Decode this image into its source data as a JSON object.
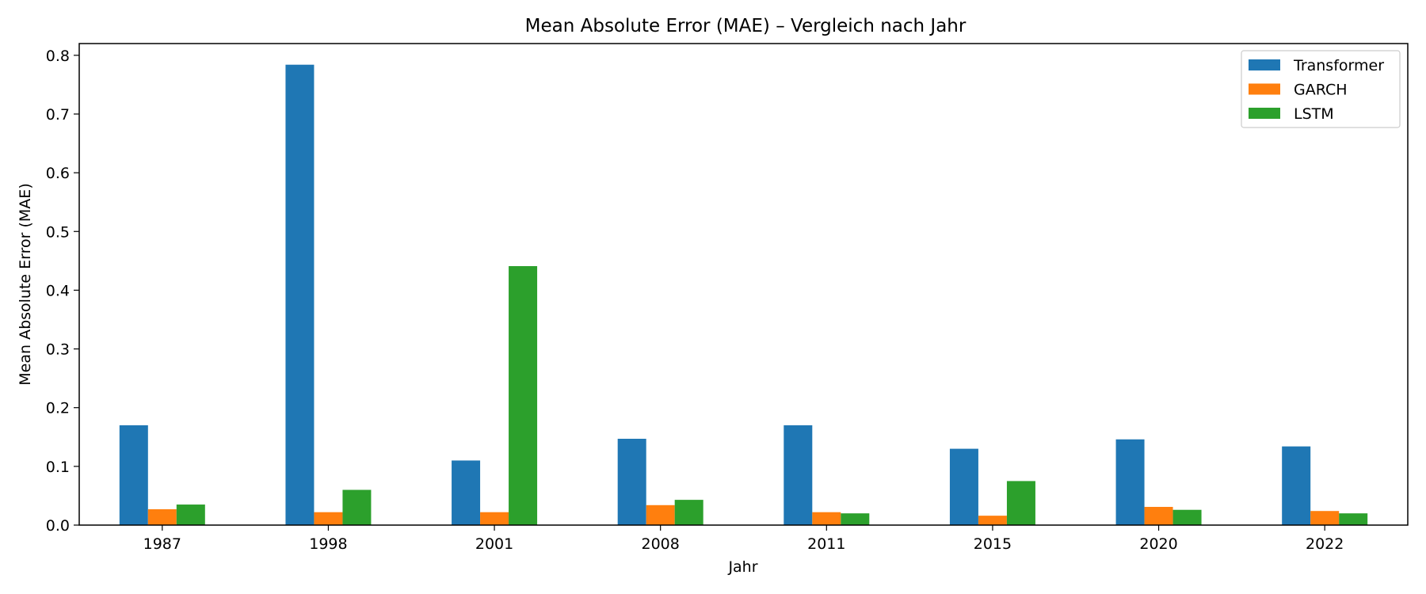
{
  "chart_data": {
    "type": "bar",
    "title": "Mean Absolute Error (MAE) – Vergleich nach Jahr",
    "xlabel": "Jahr",
    "ylabel": "Mean Absolute Error (MAE)",
    "categories": [
      "1987",
      "1998",
      "2001",
      "2008",
      "2011",
      "2015",
      "2020",
      "2022"
    ],
    "ylim": [
      0,
      0.82
    ],
    "yticks": [
      "0.0",
      "0.1",
      "0.2",
      "0.3",
      "0.4",
      "0.5",
      "0.6",
      "0.7",
      "0.8"
    ],
    "grid": false,
    "legend_position": "top-right",
    "series": [
      {
        "name": "Transformer",
        "color": "#1f77b4",
        "values": [
          0.17,
          0.784,
          0.11,
          0.147,
          0.17,
          0.13,
          0.146,
          0.134
        ]
      },
      {
        "name": "GARCH",
        "color": "#ff7f0e",
        "values": [
          0.027,
          0.022,
          0.022,
          0.034,
          0.022,
          0.016,
          0.031,
          0.024
        ]
      },
      {
        "name": "LSTM",
        "color": "#2ca02c",
        "values": [
          0.035,
          0.06,
          0.441,
          0.043,
          0.02,
          0.075,
          0.026,
          0.02
        ]
      }
    ]
  }
}
